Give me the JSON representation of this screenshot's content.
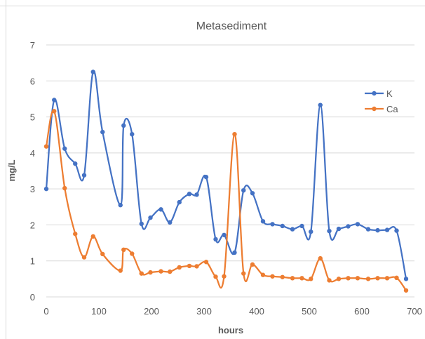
{
  "chart_data": {
    "type": "line",
    "title": "Metasediment",
    "xlabel": "hours",
    "ylabel": "mg/L",
    "xlim": [
      0,
      700
    ],
    "ylim": [
      0,
      7
    ],
    "xticks": [
      0,
      100,
      200,
      300,
      400,
      500,
      600,
      700
    ],
    "yticks": [
      0,
      1,
      2,
      3,
      4,
      5,
      6,
      7
    ],
    "grid": "horizontal",
    "legend_position": "right",
    "series": [
      {
        "name": "K",
        "color": "#4472C4",
        "points": [
          [
            0,
            3.0
          ],
          [
            15,
            5.47
          ],
          [
            35,
            4.12
          ],
          [
            55,
            3.7
          ],
          [
            72,
            3.38
          ],
          [
            89,
            6.25
          ],
          [
            107,
            4.58
          ],
          [
            141,
            2.55
          ],
          [
            147,
            4.76
          ],
          [
            163,
            4.52
          ],
          [
            181,
            2.03
          ],
          [
            198,
            2.2
          ],
          [
            218,
            2.43
          ],
          [
            235,
            2.07
          ],
          [
            253,
            2.63
          ],
          [
            272,
            2.86
          ],
          [
            286,
            2.84
          ],
          [
            304,
            3.33
          ],
          [
            322,
            1.6
          ],
          [
            338,
            1.72
          ],
          [
            358,
            1.23
          ],
          [
            375,
            2.96
          ],
          [
            392,
            2.88
          ],
          [
            412,
            2.1
          ],
          [
            430,
            2.02
          ],
          [
            449,
            1.97
          ],
          [
            468,
            1.88
          ],
          [
            486,
            1.97
          ],
          [
            503,
            1.81
          ],
          [
            521,
            5.33
          ],
          [
            538,
            1.83
          ],
          [
            556,
            1.89
          ],
          [
            574,
            1.96
          ],
          [
            592,
            2.02
          ],
          [
            612,
            1.88
          ],
          [
            630,
            1.85
          ],
          [
            648,
            1.86
          ],
          [
            666,
            1.84
          ],
          [
            684,
            0.5
          ]
        ]
      },
      {
        "name": "Ca",
        "color": "#ED7D31",
        "points": [
          [
            0,
            4.18
          ],
          [
            15,
            5.16
          ],
          [
            35,
            3.02
          ],
          [
            55,
            1.75
          ],
          [
            72,
            1.1
          ],
          [
            89,
            1.68
          ],
          [
            107,
            1.19
          ],
          [
            141,
            0.73
          ],
          [
            147,
            1.31
          ],
          [
            163,
            1.2
          ],
          [
            181,
            0.65
          ],
          [
            198,
            0.68
          ],
          [
            218,
            0.71
          ],
          [
            235,
            0.7
          ],
          [
            253,
            0.82
          ],
          [
            272,
            0.86
          ],
          [
            286,
            0.85
          ],
          [
            304,
            0.97
          ],
          [
            322,
            0.56
          ],
          [
            338,
            0.57
          ],
          [
            358,
            4.52
          ],
          [
            375,
            0.65
          ],
          [
            392,
            0.9
          ],
          [
            412,
            0.61
          ],
          [
            430,
            0.57
          ],
          [
            449,
            0.55
          ],
          [
            468,
            0.52
          ],
          [
            486,
            0.52
          ],
          [
            503,
            0.5
          ],
          [
            521,
            1.07
          ],
          [
            538,
            0.46
          ],
          [
            556,
            0.5
          ],
          [
            574,
            0.52
          ],
          [
            592,
            0.52
          ],
          [
            612,
            0.5
          ],
          [
            630,
            0.52
          ],
          [
            648,
            0.52
          ],
          [
            666,
            0.53
          ],
          [
            684,
            0.18
          ]
        ]
      }
    ]
  }
}
